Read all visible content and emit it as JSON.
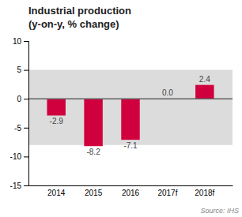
{
  "chart_data": {
    "type": "bar",
    "title": "Industrial production",
    "subtitle": "(y-on-y, % change)",
    "categories": [
      "2014",
      "2015",
      "2016",
      "2017f",
      "2018f"
    ],
    "values": [
      -2.9,
      -8.2,
      -7.1,
      0.0,
      2.4
    ],
    "value_labels": [
      "-2.9",
      "-8.2",
      "-7.1",
      "0.0",
      "2.4"
    ],
    "data_labels": true,
    "color": "#d0003e",
    "ylim": [
      -15,
      10
    ],
    "yticks": [
      -15,
      -10,
      -5,
      0,
      5,
      10
    ],
    "grid": false,
    "band": {
      "from": -8,
      "to": 5,
      "color": "#dcdcdc"
    },
    "source": "Source: IHS"
  }
}
